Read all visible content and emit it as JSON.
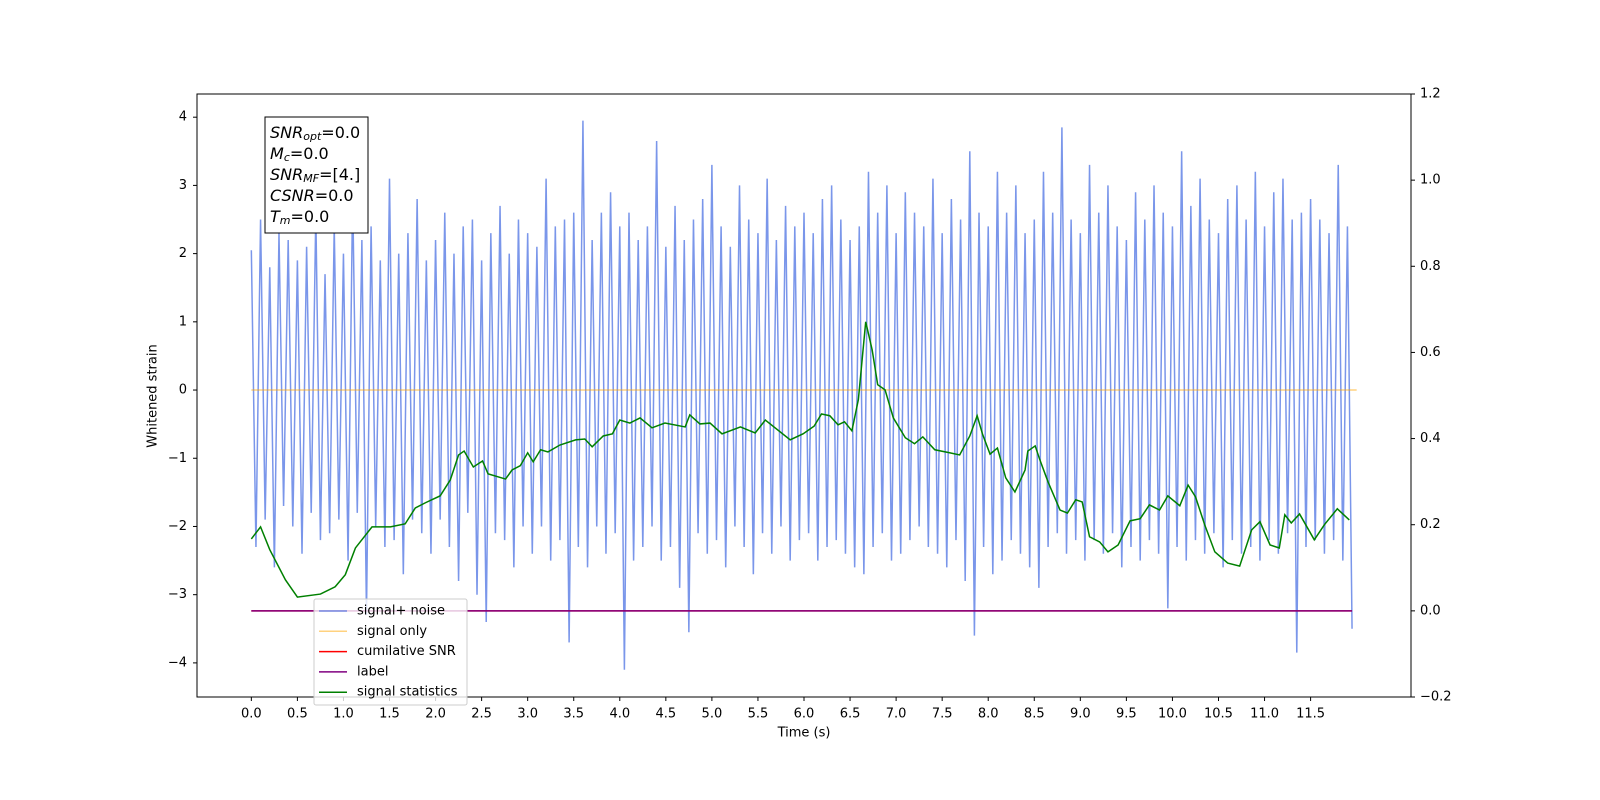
{
  "chart_data": {
    "type": "line",
    "xlabel": "Time (s)",
    "ylabel": "Whitened strain",
    "xlim": [
      -0.59,
      12.59
    ],
    "ylim": [
      -4.5,
      4.34
    ],
    "y2lim": [
      -0.2,
      1.2
    ],
    "xticks": [
      {
        "value": 0,
        "label": "0.0"
      },
      0.5,
      {
        "value": 1,
        "label": "1.0"
      },
      1.5,
      {
        "value": 2,
        "label": "2.0"
      },
      2.5,
      {
        "value": 3,
        "label": "3.0"
      },
      3.5,
      {
        "value": 4,
        "label": "4.0"
      },
      4.5,
      {
        "value": 5,
        "label": "5.0"
      },
      5.5,
      {
        "value": 6,
        "label": "6.0"
      },
      6.5,
      {
        "value": 7,
        "label": "7.0"
      },
      7.5,
      {
        "value": 8,
        "label": "8.0"
      },
      8.5,
      {
        "value": 9,
        "label": "9.0"
      },
      9.5,
      {
        "value": 10,
        "label": "10.0"
      },
      10.5,
      {
        "value": 11,
        "label": "11.0"
      },
      11.5
    ],
    "yticks": [
      {
        "value": -4,
        "label": "−4"
      },
      {
        "value": -3,
        "label": "−3"
      },
      {
        "value": -2,
        "label": "−2"
      },
      {
        "value": -1,
        "label": "−1"
      },
      0,
      1,
      2,
      3,
      4
    ],
    "y2ticks": [
      {
        "value": -0.2,
        "label": "−0.2"
      },
      {
        "value": 0,
        "label": "0.0"
      },
      0.2,
      0.4,
      0.6,
      0.8,
      {
        "value": 1,
        "label": "1.0"
      },
      1.2
    ],
    "legend": "lower left",
    "annotations": [
      {
        "main": "SNR",
        "sub": "opt",
        "rest": "=0.0"
      },
      {
        "main": "M",
        "sub": "c",
        "rest": "=0.0"
      },
      {
        "main": "SNR",
        "sub": "MF",
        "rest": "=[4.]"
      },
      {
        "main": "CSNR",
        "rest": "=0.0"
      },
      {
        "main": "T",
        "sub": "m",
        "rest": "=0.0"
      }
    ],
    "series": [
      {
        "name": "signal+ noise",
        "color": "#4169e1",
        "alpha": 0.7,
        "axis": "y",
        "x": [
          0,
          0.05,
          0.1,
          0.15,
          0.2,
          0.25,
          0.3,
          0.35,
          0.4,
          0.45,
          0.5,
          0.55,
          0.6,
          0.65,
          0.7,
          0.75,
          0.8,
          0.85,
          0.9,
          0.95,
          1,
          1.05,
          1.1,
          1.15,
          1.2,
          1.25,
          1.3,
          1.35,
          1.4,
          1.45,
          1.5,
          1.55,
          1.6,
          1.65,
          1.7,
          1.75,
          1.8,
          1.85,
          1.9,
          1.95,
          2,
          2.05,
          2.1,
          2.15,
          2.2,
          2.25,
          2.3,
          2.35,
          2.4,
          2.45,
          2.5,
          2.55,
          2.6,
          2.65,
          2.7,
          2.75,
          2.8,
          2.85,
          2.9,
          2.95,
          3,
          3.05,
          3.1,
          3.15,
          3.2,
          3.25,
          3.3,
          3.35,
          3.4,
          3.45,
          3.5,
          3.55,
          3.6,
          3.65,
          3.7,
          3.75,
          3.8,
          3.85,
          3.9,
          3.95,
          4,
          4.05,
          4.1,
          4.15,
          4.2,
          4.25,
          4.3,
          4.35,
          4.4,
          4.45,
          4.5,
          4.55,
          4.6,
          4.65,
          4.7,
          4.75,
          4.8,
          4.85,
          4.9,
          4.95,
          5,
          5.05,
          5.1,
          5.15,
          5.2,
          5.25,
          5.3,
          5.35,
          5.4,
          5.45,
          5.5,
          5.55,
          5.6,
          5.65,
          5.7,
          5.75,
          5.8,
          5.85,
          5.9,
          5.95,
          6,
          6.05,
          6.1,
          6.15,
          6.2,
          6.25,
          6.3,
          6.35,
          6.4,
          6.45,
          6.5,
          6.55,
          6.6,
          6.65,
          6.7,
          6.75,
          6.8,
          6.85,
          6.9,
          6.95,
          7,
          7.05,
          7.1,
          7.15,
          7.2,
          7.25,
          7.3,
          7.35,
          7.4,
          7.45,
          7.5,
          7.55,
          7.6,
          7.65,
          7.7,
          7.75,
          7.8,
          7.85,
          7.9,
          7.95,
          8,
          8.05,
          8.1,
          8.15,
          8.2,
          8.25,
          8.3,
          8.35,
          8.4,
          8.45,
          8.5,
          8.55,
          8.6,
          8.65,
          8.7,
          8.75,
          8.8,
          8.85,
          8.9,
          8.95,
          9,
          9.05,
          9.1,
          9.15,
          9.2,
          9.25,
          9.3,
          9.35,
          9.4,
          9.45,
          9.5,
          9.55,
          9.6,
          9.65,
          9.7,
          9.75,
          9.8,
          9.85,
          9.9,
          9.95,
          10,
          10.05,
          10.1,
          10.15,
          10.2,
          10.25,
          10.3,
          10.35,
          10.4,
          10.45,
          10.5,
          10.55,
          10.6,
          10.65,
          10.7,
          10.75,
          10.8,
          10.85,
          10.9,
          10.95,
          11,
          11.05,
          11.1,
          11.15,
          11.2,
          11.25,
          11.3,
          11.35,
          11.4,
          11.45,
          11.5,
          11.55,
          11.6,
          11.65,
          11.7,
          11.75,
          11.8,
          11.85,
          11.9,
          11.95
        ],
        "values": [
          2.05,
          -2.3,
          2.5,
          -1.9,
          1.8,
          -2.6,
          2.3,
          -1.7,
          2.2,
          -2.0,
          1.9,
          -2.4,
          2.1,
          -1.8,
          2.6,
          -2.2,
          1.7,
          -2.1,
          2.4,
          -1.9,
          2.0,
          -2.5,
          2.9,
          -1.8,
          2.2,
          -3.3,
          2.4,
          -2.0,
          1.9,
          -2.3,
          3.1,
          -2.2,
          2.0,
          -2.7,
          2.3,
          -1.9,
          2.8,
          -2.1,
          1.9,
          -2.4,
          2.2,
          -1.9,
          2.6,
          -2.3,
          2.0,
          -2.8,
          2.4,
          -1.8,
          2.5,
          -3.0,
          1.9,
          -3.4,
          2.3,
          -2.1,
          2.7,
          -2.2,
          2.0,
          -2.6,
          2.5,
          -2.0,
          2.3,
          -2.4,
          2.1,
          -2.0,
          3.1,
          -2.5,
          2.4,
          -2.2,
          2.5,
          -3.7,
          2.6,
          -2.3,
          3.95,
          -2.6,
          2.2,
          -2.0,
          2.6,
          -2.4,
          2.9,
          -2.1,
          2.4,
          -4.1,
          2.6,
          -2.5,
          2.2,
          -2.3,
          2.4,
          -2.0,
          3.65,
          -2.5,
          2.1,
          -2.3,
          2.7,
          -2.9,
          2.2,
          -3.55,
          2.5,
          -2.1,
          2.8,
          -2.4,
          3.3,
          -2.2,
          2.4,
          -2.6,
          2.1,
          -2.0,
          3.0,
          -2.3,
          2.5,
          -2.7,
          2.3,
          -2.1,
          3.1,
          -2.4,
          2.2,
          -2.0,
          2.7,
          -2.5,
          2.4,
          -2.2,
          2.6,
          -2.1,
          2.3,
          -2.5,
          2.8,
          -2.3,
          3.0,
          -2.2,
          2.5,
          -2.4,
          2.2,
          -2.6,
          2.4,
          -2.7,
          3.2,
          -2.3,
          2.6,
          -2.1,
          3.0,
          -2.5,
          2.3,
          -2.4,
          2.9,
          -2.2,
          2.6,
          -2.0,
          2.4,
          -2.3,
          3.1,
          -2.4,
          2.3,
          -2.6,
          2.8,
          -2.2,
          2.5,
          -2.8,
          3.5,
          -3.6,
          2.6,
          -2.3,
          2.4,
          -2.7,
          3.2,
          -2.5,
          2.6,
          -2.2,
          3.0,
          -2.4,
          2.3,
          -2.6,
          2.5,
          -2.9,
          3.2,
          -2.3,
          2.6,
          -2.1,
          3.85,
          -2.4,
          2.5,
          -2.2,
          2.3,
          -2.5,
          3.3,
          -2.2,
          2.6,
          -2.4,
          3.0,
          -2.1,
          2.4,
          -2.6,
          2.2,
          -2.3,
          2.9,
          -2.5,
          2.5,
          -2.2,
          3.0,
          -2.4,
          2.6,
          -3.2,
          2.4,
          -2.3,
          3.5,
          -2.5,
          2.7,
          -2.2,
          3.1,
          -2.4,
          2.5,
          -2.1,
          2.3,
          -2.6,
          2.8,
          -2.2,
          3.0,
          -2.4,
          2.5,
          -2.3,
          3.2,
          -2.5,
          2.4,
          -2.2,
          2.9,
          -2.4,
          3.1,
          -2.1,
          2.5,
          -3.85,
          2.6,
          -2.3,
          2.8,
          -2.2,
          2.5,
          -2.4,
          2.3,
          -2.2,
          3.3,
          -2.5,
          2.4,
          -3.5
        ]
      },
      {
        "name": "signal only",
        "color": "#ffa500",
        "alpha": 0.5,
        "axis": "y",
        "x": [
          0,
          12
        ],
        "values": [
          0,
          0
        ]
      },
      {
        "name": "cumilative SNR",
        "color": "#ff0000",
        "alpha": 1,
        "axis": "y2",
        "x": [
          0,
          11.95
        ],
        "values": [
          0,
          0
        ]
      },
      {
        "name": "label",
        "color": "#800080",
        "alpha": 1,
        "axis": "y2",
        "x": [
          0,
          11.95
        ],
        "values": [
          0,
          0
        ]
      },
      {
        "name": "signal statistics",
        "color": "#008000",
        "alpha": 1,
        "axis": "y2",
        "x": [
          0.0,
          0.1,
          0.2,
          0.37,
          0.5,
          0.75,
          0.91,
          1.02,
          1.13,
          1.31,
          1.51,
          1.67,
          1.78,
          1.89,
          2.05,
          2.16,
          2.25,
          2.31,
          2.41,
          2.51,
          2.57,
          2.76,
          2.83,
          2.92,
          3.0,
          3.06,
          3.14,
          3.22,
          3.35,
          3.52,
          3.62,
          3.7,
          3.82,
          3.92,
          4.0,
          4.11,
          4.22,
          4.35,
          4.49,
          4.71,
          4.76,
          4.87,
          4.98,
          5.11,
          5.31,
          5.47,
          5.58,
          5.85,
          5.99,
          6.11,
          6.19,
          6.28,
          6.37,
          6.44,
          6.52,
          6.59,
          6.67,
          6.74,
          6.8,
          6.88,
          6.97,
          7.1,
          7.2,
          7.29,
          7.42,
          7.58,
          7.69,
          7.8,
          7.88,
          7.94,
          8.02,
          8.1,
          8.19,
          8.29,
          8.4,
          8.43,
          8.51,
          8.56,
          8.65,
          8.78,
          8.86,
          8.95,
          9.02,
          9.1,
          9.21,
          9.3,
          9.41,
          9.54,
          9.65,
          9.75,
          9.86,
          9.95,
          10.08,
          10.17,
          10.25,
          10.35,
          10.46,
          10.6,
          10.73,
          10.86,
          10.95,
          11.06,
          11.16,
          11.22,
          11.29,
          11.38,
          11.54,
          11.65,
          11.79,
          11.92
        ],
        "values": [
          0.167,
          0.195,
          0.142,
          0.072,
          0.032,
          0.039,
          0.056,
          0.084,
          0.146,
          0.195,
          0.195,
          0.202,
          0.239,
          0.251,
          0.267,
          0.304,
          0.362,
          0.371,
          0.334,
          0.348,
          0.318,
          0.306,
          0.327,
          0.337,
          0.367,
          0.346,
          0.374,
          0.369,
          0.385,
          0.397,
          0.399,
          0.381,
          0.406,
          0.411,
          0.443,
          0.436,
          0.448,
          0.425,
          0.436,
          0.427,
          0.455,
          0.434,
          0.436,
          0.411,
          0.427,
          0.413,
          0.443,
          0.397,
          0.411,
          0.429,
          0.457,
          0.453,
          0.432,
          0.439,
          0.418,
          0.49,
          0.671,
          0.606,
          0.525,
          0.513,
          0.448,
          0.402,
          0.388,
          0.404,
          0.374,
          0.367,
          0.362,
          0.406,
          0.453,
          0.409,
          0.364,
          0.378,
          0.309,
          0.276,
          0.327,
          0.371,
          0.383,
          0.351,
          0.299,
          0.234,
          0.227,
          0.258,
          0.253,
          0.172,
          0.16,
          0.137,
          0.153,
          0.209,
          0.214,
          0.246,
          0.234,
          0.267,
          0.244,
          0.292,
          0.265,
          0.2,
          0.137,
          0.111,
          0.104,
          0.188,
          0.207,
          0.153,
          0.146,
          0.223,
          0.204,
          0.225,
          0.165,
          0.2,
          0.237,
          0.211
        ]
      }
    ]
  }
}
